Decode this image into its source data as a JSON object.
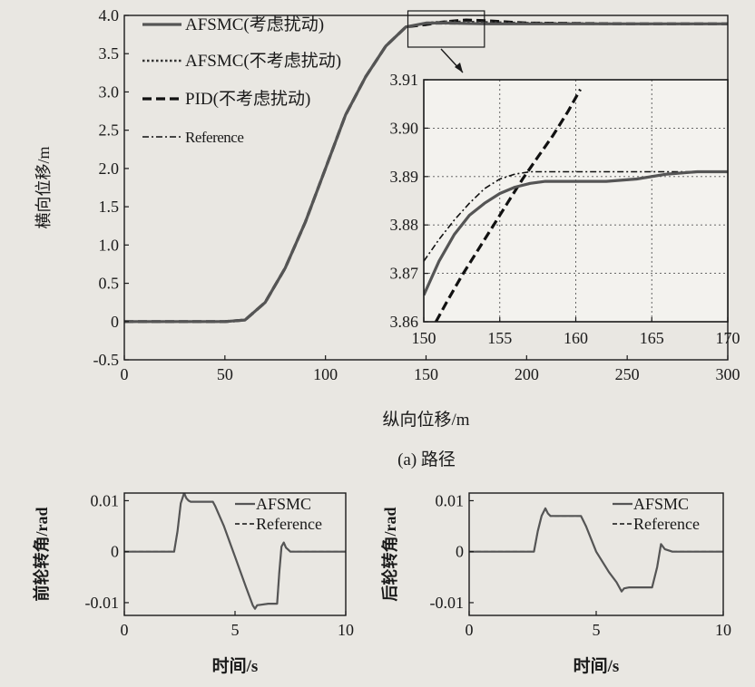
{
  "colors": {
    "background": "#e9e7e2",
    "ink": "#1a1a1a",
    "afsmc_line": "#555555"
  },
  "main_caption": "(a) 路径",
  "chart_data": [
    {
      "type": "line",
      "panel": "path",
      "xlabel": "纵向位移/m",
      "ylabel": "横向位移/m",
      "xlim": [
        0,
        300
      ],
      "ylim": [
        -0.5,
        4.0
      ],
      "xticks": [
        "0",
        "50",
        "100",
        "150",
        "200",
        "250",
        "300"
      ],
      "yticks": [
        "-0.5",
        "0",
        "0.5",
        "1.0",
        "1.5",
        "2.0",
        "2.5",
        "3.0",
        "3.5",
        "4.0"
      ],
      "grid": false,
      "legend_position": "top-left",
      "series": [
        {
          "name": "AFSMC(考虑扰动)",
          "style": "solid",
          "x": [
            0,
            50,
            60,
            70,
            80,
            90,
            100,
            110,
            120,
            130,
            140,
            150,
            160,
            180,
            200,
            250,
            300
          ],
          "y": [
            0,
            0,
            0.02,
            0.25,
            0.7,
            1.3,
            2.0,
            2.7,
            3.2,
            3.6,
            3.85,
            3.9,
            3.9,
            3.89,
            3.89,
            3.89,
            3.89
          ]
        },
        {
          "name": "AFSMC(不考虑扰动)",
          "style": "dotted",
          "x": [
            0,
            50,
            60,
            70,
            80,
            90,
            100,
            110,
            120,
            130,
            140,
            150,
            160,
            180,
            200,
            250,
            300
          ],
          "y": [
            0,
            0,
            0.02,
            0.25,
            0.7,
            1.3,
            2.0,
            2.7,
            3.2,
            3.6,
            3.85,
            3.9,
            3.92,
            3.91,
            3.9,
            3.89,
            3.89
          ]
        },
        {
          "name": "PID(不考虑扰动)",
          "style": "dashed",
          "x": [
            0,
            50,
            60,
            70,
            80,
            90,
            100,
            110,
            120,
            130,
            140,
            150,
            160,
            170,
            180,
            200,
            250,
            300
          ],
          "y": [
            0,
            0,
            0.02,
            0.25,
            0.7,
            1.3,
            2.0,
            2.7,
            3.2,
            3.6,
            3.85,
            3.88,
            3.92,
            3.94,
            3.93,
            3.9,
            3.89,
            3.89
          ]
        },
        {
          "name": "Reference",
          "style": "dashdot",
          "x": [
            0,
            50,
            60,
            70,
            80,
            90,
            100,
            110,
            120,
            130,
            140,
            150,
            160,
            200,
            250,
            300
          ],
          "y": [
            0,
            0,
            0.02,
            0.25,
            0.7,
            1.3,
            2.0,
            2.7,
            3.2,
            3.6,
            3.85,
            3.89,
            3.89,
            3.89,
            3.89,
            3.89
          ]
        }
      ]
    },
    {
      "type": "line",
      "panel": "zoom",
      "xlim": [
        150,
        170
      ],
      "ylim": [
        3.86,
        3.91
      ],
      "xticks": [
        "150",
        "155",
        "160",
        "165",
        "170"
      ],
      "yticks": [
        "3.86",
        "3.87",
        "3.88",
        "3.89",
        "3.90",
        "3.91"
      ],
      "grid": true,
      "series": [
        {
          "name": "AFSMC(考虑扰动)",
          "style": "solid",
          "x": [
            150,
            151,
            152,
            153,
            154,
            155,
            156,
            157,
            158,
            159,
            160,
            162,
            164,
            166,
            168,
            170
          ],
          "y": [
            3.8655,
            3.8725,
            3.878,
            3.882,
            3.8845,
            3.8865,
            3.8878,
            3.8886,
            3.889,
            3.889,
            3.889,
            3.889,
            3.8895,
            3.8905,
            3.891,
            3.891
          ]
        },
        {
          "name": "AFSMC(不考虑扰动)",
          "style": "dotted",
          "x": [
            150,
            151,
            152,
            153,
            154,
            155,
            156,
            157,
            158,
            159,
            160,
            162,
            164,
            166,
            168,
            170
          ],
          "y": [
            3.8655,
            3.8725,
            3.878,
            3.882,
            3.8845,
            3.8865,
            3.8878,
            3.8886,
            3.889,
            3.889,
            3.889,
            3.889,
            3.8895,
            3.8905,
            3.891,
            3.891
          ]
        },
        {
          "name": "PID(不考虑扰动)",
          "style": "dashed",
          "x": [
            150.8,
            151.5,
            152.5,
            153.5,
            154.5,
            155.5,
            156.5,
            157.5,
            158.5,
            159.5,
            160.3
          ],
          "y": [
            3.86,
            3.864,
            3.8695,
            3.8745,
            3.8795,
            3.8845,
            3.8895,
            3.894,
            3.8985,
            3.9035,
            3.908
          ]
        },
        {
          "name": "Reference",
          "style": "dashdot",
          "x": [
            150,
            151,
            152,
            153,
            154,
            155,
            156,
            157,
            158,
            160,
            165,
            170
          ],
          "y": [
            3.8725,
            3.877,
            3.881,
            3.8845,
            3.8875,
            3.8895,
            3.8905,
            3.891,
            3.891,
            3.891,
            3.891,
            3.891
          ]
        }
      ]
    },
    {
      "type": "line",
      "panel": "front",
      "xlabel": "时间/s",
      "ylabel": "前轮转角/rad",
      "xlim": [
        0,
        10
      ],
      "ylim": [
        -0.0125,
        0.0115
      ],
      "xticks": [
        "0",
        "5",
        "10"
      ],
      "yticks": [
        "0.01",
        "0",
        "-0.01"
      ],
      "ytick_values": [
        0.01,
        0,
        -0.01
      ],
      "grid": false,
      "legend_position": "top-right",
      "series": [
        {
          "name": "AFSMC",
          "style": "solid",
          "x": [
            0,
            2.25,
            2.4,
            2.55,
            2.7,
            2.8,
            2.9,
            3.0,
            3.5,
            4.0,
            4.1,
            4.5,
            5.0,
            5.5,
            5.8,
            5.9,
            6.0,
            6.5,
            6.9,
            7.0,
            7.1,
            7.2,
            7.3,
            7.5,
            10
          ],
          "y": [
            0,
            0,
            0.004,
            0.0095,
            0.0115,
            0.0105,
            0.01,
            0.0098,
            0.0098,
            0.0098,
            0.009,
            0.005,
            -0.001,
            -0.007,
            -0.0105,
            -0.0112,
            -0.0105,
            -0.0102,
            -0.0102,
            -0.004,
            0.001,
            0.0018,
            0.0008,
            0,
            0
          ]
        },
        {
          "name": "Reference",
          "style": "dashed",
          "x": [
            0,
            2.25,
            2.4,
            2.55,
            2.7,
            2.8,
            2.9,
            3.0,
            3.5,
            4.0,
            4.1,
            4.5,
            5.0,
            5.5,
            5.8,
            5.9,
            6.0,
            6.5,
            6.9,
            7.0,
            7.1,
            7.2,
            7.3,
            7.5,
            10
          ],
          "y": [
            0,
            0,
            0.004,
            0.0095,
            0.0115,
            0.0105,
            0.01,
            0.0098,
            0.0098,
            0.0098,
            0.009,
            0.005,
            -0.001,
            -0.007,
            -0.0105,
            -0.0112,
            -0.0105,
            -0.0102,
            -0.0102,
            -0.004,
            0.001,
            0.0018,
            0.0008,
            0,
            0
          ]
        }
      ]
    },
    {
      "type": "line",
      "panel": "rear",
      "xlabel": "时间/s",
      "ylabel": "后轮转角/rad",
      "xlim": [
        0,
        10
      ],
      "ylim": [
        -0.0125,
        0.0115
      ],
      "xticks": [
        "0",
        "5",
        "10"
      ],
      "yticks": [
        "0.01",
        "0",
        "-0.01"
      ],
      "ytick_values": [
        0.01,
        0,
        -0.01
      ],
      "grid": false,
      "legend_position": "top-right",
      "series": [
        {
          "name": "AFSMC",
          "style": "solid",
          "x": [
            0,
            2.55,
            2.7,
            2.85,
            3.0,
            3.1,
            3.2,
            3.5,
            4.0,
            4.4,
            4.6,
            5.0,
            5.5,
            5.8,
            6.0,
            6.1,
            6.3,
            6.6,
            7.0,
            7.2,
            7.4,
            7.55,
            7.7,
            8.0,
            10
          ],
          "y": [
            0,
            0,
            0.004,
            0.007,
            0.0085,
            0.0075,
            0.007,
            0.007,
            0.007,
            0.007,
            0.005,
            0.0,
            -0.004,
            -0.006,
            -0.0078,
            -0.0072,
            -0.007,
            -0.007,
            -0.007,
            -0.007,
            -0.003,
            0.0015,
            0.0005,
            0,
            0
          ]
        },
        {
          "name": "Reference",
          "style": "dashed",
          "x": [
            0,
            2.55,
            2.7,
            2.85,
            3.0,
            3.1,
            3.2,
            3.5,
            4.0,
            4.4,
            4.6,
            5.0,
            5.5,
            5.8,
            6.0,
            6.1,
            6.3,
            6.6,
            7.0,
            7.2,
            7.4,
            7.55,
            7.7,
            8.0,
            10
          ],
          "y": [
            0,
            0,
            0.004,
            0.007,
            0.0085,
            0.0075,
            0.007,
            0.007,
            0.007,
            0.007,
            0.005,
            0.0,
            -0.004,
            -0.006,
            -0.0078,
            -0.0072,
            -0.007,
            -0.007,
            -0.007,
            -0.007,
            -0.003,
            0.0015,
            0.0005,
            0,
            0
          ]
        }
      ]
    }
  ]
}
